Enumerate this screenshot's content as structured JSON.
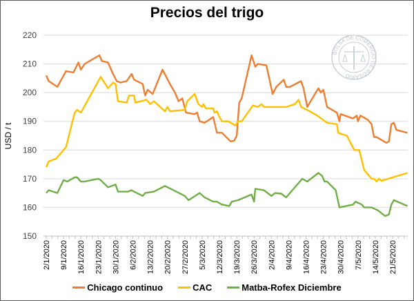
{
  "chart_data": {
    "type": "line",
    "title": "Precios del trigo",
    "xlabel": "",
    "ylabel": "USD / t",
    "ylim": [
      150,
      220
    ],
    "yticks": [
      150,
      160,
      170,
      180,
      190,
      200,
      210,
      220
    ],
    "grid": true,
    "x_unit": "days since 2/1/2020",
    "xlim": [
      0,
      146
    ],
    "xtick_labels": [
      "2/1/2020",
      "9/1/2020",
      "16/1/2020",
      "23/1/2020",
      "30/1/2020",
      "6/2/2020",
      "13/2/2020",
      "20/2/2020",
      "27/2/2020",
      "5/3/2020",
      "12/3/2020",
      "19/3/2020",
      "26/3/2020",
      "2/4/2020",
      "9/4/2020",
      "16/4/2020",
      "23/4/2020",
      "30/4/2020",
      "7/5/2020",
      "14/5/2020",
      "21/5/2020"
    ],
    "legend_position": "bottom",
    "watermark": "BOLSA DE COMERCIO DE ROSARIO",
    "series": [
      {
        "name": "Chicago continuo",
        "color": "#ED7D31",
        "points": [
          [
            0,
            206
          ],
          [
            1,
            204
          ],
          [
            4.5,
            202
          ],
          [
            8,
            207.5
          ],
          [
            11,
            207
          ],
          [
            13,
            210.5
          ],
          [
            14,
            208
          ],
          [
            15.5,
            210
          ],
          [
            21.5,
            213
          ],
          [
            22.5,
            211
          ],
          [
            25,
            210.5
          ],
          [
            27,
            206.5
          ],
          [
            28.5,
            204
          ],
          [
            30,
            203.5
          ],
          [
            32.5,
            204
          ],
          [
            34.5,
            206.5
          ],
          [
            35.5,
            204.5
          ],
          [
            39,
            203
          ],
          [
            40,
            199
          ],
          [
            41,
            201
          ],
          [
            43,
            199.5
          ],
          [
            47,
            208
          ],
          [
            50,
            203
          ],
          [
            52,
            200
          ],
          [
            53.5,
            197
          ],
          [
            55,
            198
          ],
          [
            56.5,
            193
          ],
          [
            60,
            192.5
          ],
          [
            61,
            193
          ],
          [
            62,
            190
          ],
          [
            64,
            189.5
          ],
          [
            67.5,
            191.5
          ],
          [
            69,
            186
          ],
          [
            71,
            186
          ],
          [
            74.5,
            183
          ],
          [
            76,
            183.3
          ],
          [
            77,
            185
          ],
          [
            78,
            196.5
          ],
          [
            79,
            198
          ],
          [
            83,
            213
          ],
          [
            84.5,
            209
          ],
          [
            85.5,
            210
          ],
          [
            89,
            209.5
          ],
          [
            91.5,
            199.5
          ],
          [
            93,
            202
          ],
          [
            96,
            204.5
          ],
          [
            97,
            202
          ],
          [
            98.5,
            202
          ],
          [
            103,
            204
          ],
          [
            104,
            201.5
          ],
          [
            105.5,
            195
          ],
          [
            110,
            201.5
          ],
          [
            111,
            200
          ],
          [
            112,
            201
          ],
          [
            113.5,
            195
          ],
          [
            117.5,
            193
          ],
          [
            118.5,
            190
          ],
          [
            119,
            192.5
          ],
          [
            124,
            191
          ],
          [
            125.5,
            192
          ],
          [
            126,
            190
          ],
          [
            127,
            192
          ],
          [
            130,
            190.5
          ],
          [
            131.5,
            189
          ],
          [
            132.5,
            184.5
          ],
          [
            133.5,
            184.5
          ],
          [
            137.5,
            182.5
          ],
          [
            138.5,
            183
          ],
          [
            139.5,
            189
          ],
          [
            140.5,
            189.5
          ],
          [
            141.5,
            187
          ],
          [
            146,
            186
          ]
        ]
      },
      {
        "name": "CAC",
        "color": "#FFC000",
        "points": [
          [
            0,
            174
          ],
          [
            1,
            176
          ],
          [
            4,
            177
          ],
          [
            8,
            181
          ],
          [
            11.5,
            193
          ],
          [
            12.5,
            194
          ],
          [
            14,
            193
          ],
          [
            22,
            205.5
          ],
          [
            25,
            201.5
          ],
          [
            27,
            203.5
          ],
          [
            28,
            203
          ],
          [
            29,
            197
          ],
          [
            32.5,
            196.5
          ],
          [
            33.5,
            199
          ],
          [
            35.5,
            199
          ],
          [
            36,
            196.5
          ],
          [
            40.5,
            197.5
          ],
          [
            42,
            196
          ],
          [
            43.5,
            197
          ],
          [
            48,
            193.5
          ],
          [
            49,
            195
          ],
          [
            50,
            193.5
          ],
          [
            56,
            194
          ],
          [
            57,
            197
          ],
          [
            60,
            199.5
          ],
          [
            61.5,
            196
          ],
          [
            63,
            195
          ],
          [
            63.5,
            196
          ],
          [
            64.5,
            194.5
          ],
          [
            67.5,
            194.5
          ],
          [
            68,
            193
          ],
          [
            69,
            193.5
          ],
          [
            70,
            191.5
          ],
          [
            71,
            190
          ],
          [
            73.5,
            190
          ],
          [
            76.5,
            188.5
          ],
          [
            77.5,
            190
          ],
          [
            79,
            190
          ],
          [
            83.5,
            195.5
          ],
          [
            85.5,
            195
          ],
          [
            87,
            196
          ],
          [
            88,
            195
          ],
          [
            97,
            195
          ],
          [
            100.5,
            196
          ],
          [
            102,
            197.5
          ],
          [
            103,
            195
          ],
          [
            106.5,
            193.5
          ],
          [
            109.5,
            192
          ],
          [
            113.5,
            189.5
          ],
          [
            117.5,
            189
          ],
          [
            118,
            186
          ],
          [
            119.5,
            185.5
          ],
          [
            121.5,
            185
          ],
          [
            124.5,
            180
          ],
          [
            126.5,
            180
          ],
          [
            128.5,
            173
          ],
          [
            131.5,
            170
          ],
          [
            132.5,
            170
          ],
          [
            133.5,
            169
          ],
          [
            134.5,
            170
          ],
          [
            135.5,
            169.3
          ],
          [
            146,
            172
          ]
        ]
      },
      {
        "name": "Matba-Rofex Diciembre",
        "color": "#70AD47",
        "points": [
          [
            0,
            165
          ],
          [
            1,
            166
          ],
          [
            4.5,
            165
          ],
          [
            7,
            169.5
          ],
          [
            8.5,
            169
          ],
          [
            11.5,
            170.5
          ],
          [
            12.5,
            170.5
          ],
          [
            14,
            169
          ],
          [
            15.5,
            169
          ],
          [
            21,
            170
          ],
          [
            22,
            169.5
          ],
          [
            25,
            167
          ],
          [
            28,
            168
          ],
          [
            29,
            165.5
          ],
          [
            33,
            165.5
          ],
          [
            34.5,
            166
          ],
          [
            35.5,
            165.5
          ],
          [
            39,
            164
          ],
          [
            40,
            165
          ],
          [
            43.5,
            165.5
          ],
          [
            48,
            167.5
          ],
          [
            56,
            164
          ],
          [
            57.5,
            162.5
          ],
          [
            62,
            165
          ],
          [
            64,
            163.5
          ],
          [
            67.5,
            162
          ],
          [
            69,
            162
          ],
          [
            71,
            161
          ],
          [
            74,
            160.5
          ],
          [
            75,
            162
          ],
          [
            77.5,
            162.5
          ],
          [
            83,
            164.5
          ],
          [
            84,
            162
          ],
          [
            84.5,
            166.5
          ],
          [
            88,
            166
          ],
          [
            91,
            164
          ],
          [
            92.5,
            165
          ],
          [
            95,
            164.8
          ],
          [
            97,
            163.5
          ],
          [
            103.5,
            170
          ],
          [
            105.5,
            169
          ],
          [
            110,
            172
          ],
          [
            111.5,
            171
          ],
          [
            112.5,
            169
          ],
          [
            113.5,
            169
          ],
          [
            117,
            166
          ],
          [
            118.5,
            160
          ],
          [
            124,
            161
          ],
          [
            125,
            162
          ],
          [
            127.5,
            161
          ],
          [
            128.5,
            160
          ],
          [
            131.5,
            160
          ],
          [
            134,
            159
          ],
          [
            137,
            157
          ],
          [
            138.5,
            157.5
          ],
          [
            139.5,
            161
          ],
          [
            140.5,
            162.5
          ],
          [
            146,
            160.5
          ]
        ]
      }
    ]
  }
}
